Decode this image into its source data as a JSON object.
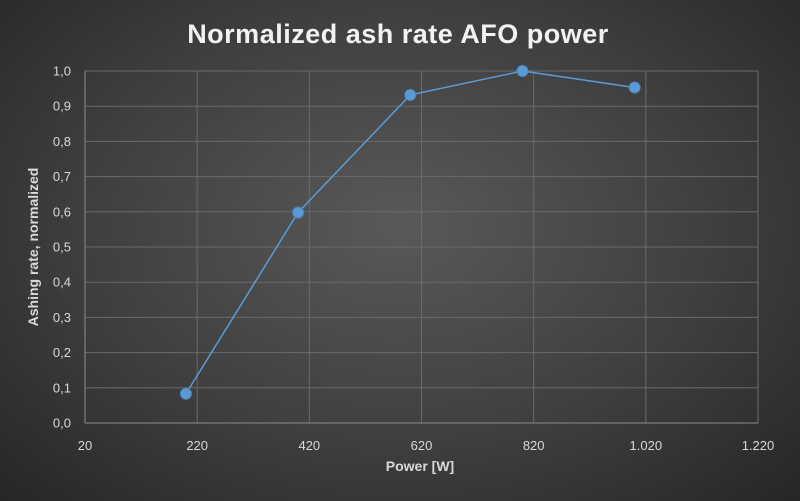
{
  "chart_data": {
    "type": "scatter",
    "title": "Normalized ash rate AFO power",
    "xlabel": "Power [W]",
    "ylabel": "Ashing rate, normalized",
    "xlim": [
      20,
      1220
    ],
    "ylim": [
      0,
      1.0
    ],
    "x_ticks": [
      "20",
      "220",
      "420",
      "620",
      "820",
      "1.020",
      "1.220"
    ],
    "y_ticks": [
      "0,0",
      "0,1",
      "0,2",
      "0,3",
      "0,4",
      "0,5",
      "0,6",
      "0,7",
      "0,8",
      "0,9",
      "1,0"
    ],
    "grid": true,
    "colors": {
      "series": "#5b9bd5"
    },
    "series": [
      {
        "x": [
          200,
          400,
          600,
          800,
          1000
        ],
        "y": [
          0.083,
          0.598,
          0.932,
          1.0,
          0.953
        ]
      }
    ]
  }
}
